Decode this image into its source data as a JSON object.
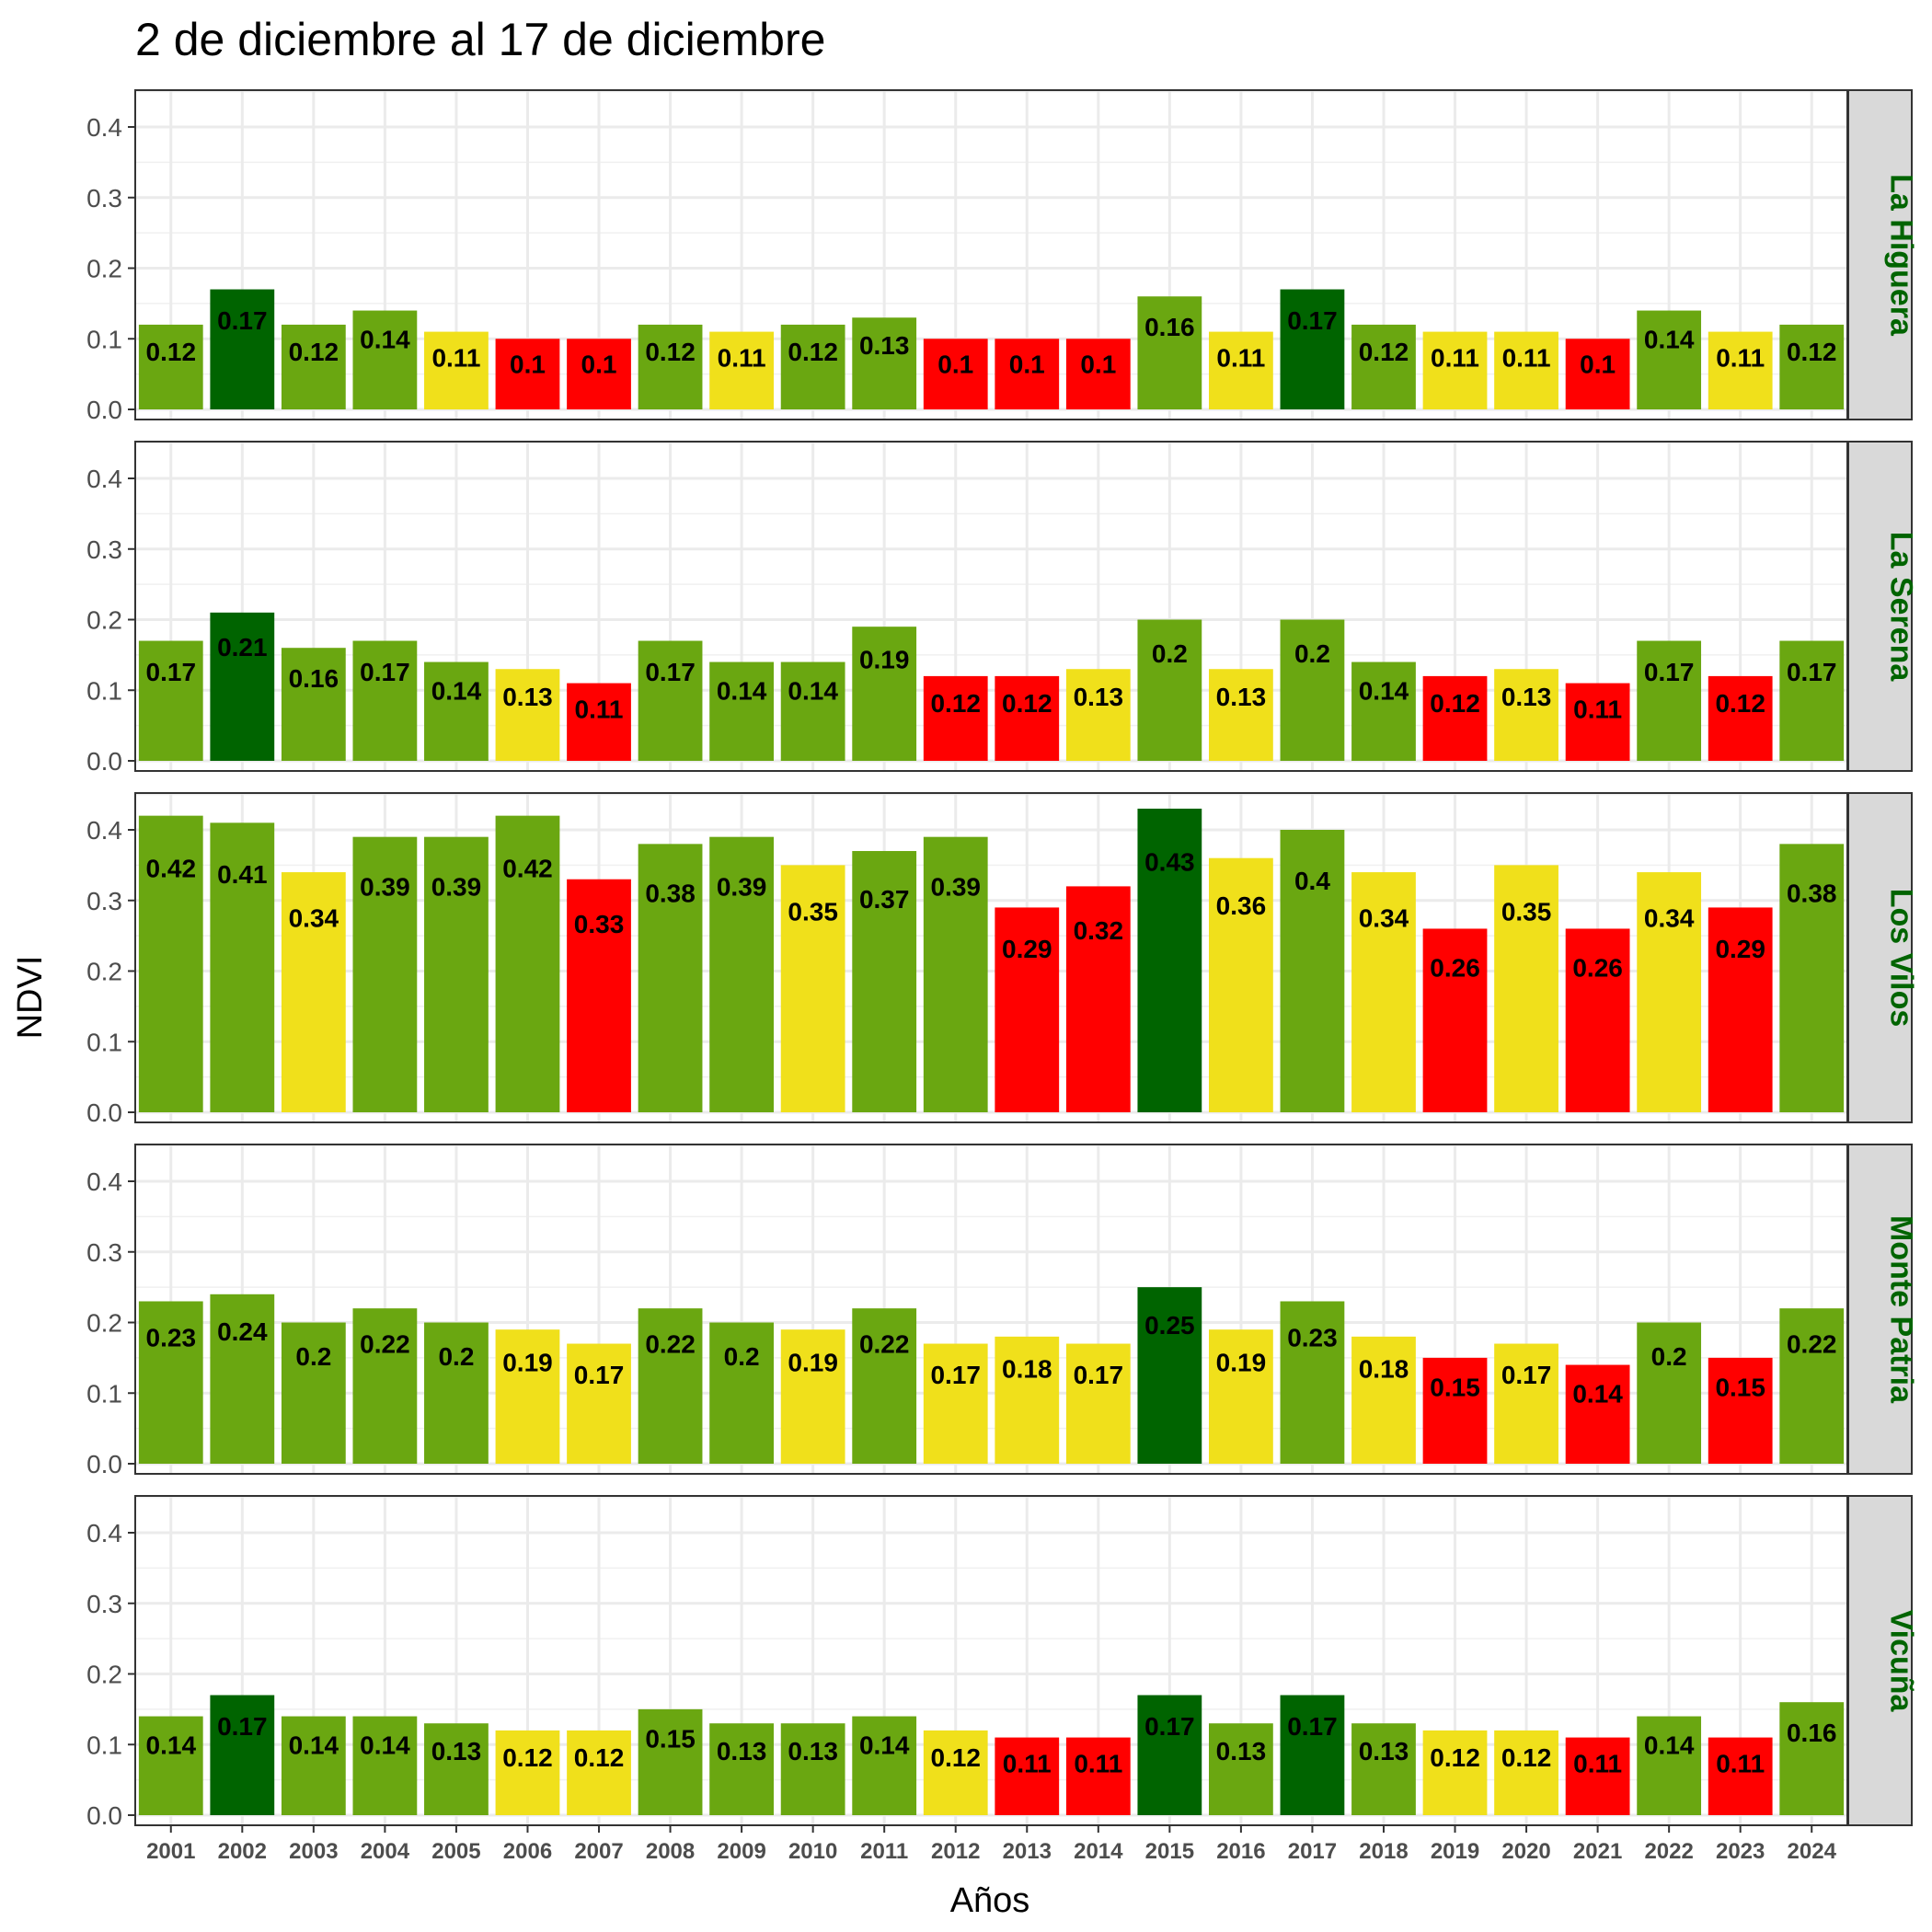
{
  "chart_data": {
    "type": "bar",
    "title": "2 de diciembre al 17 de diciembre",
    "xlabel": "Años",
    "ylabel": "NDVI",
    "ylim": [
      0,
      0.45
    ],
    "yticks": [
      "0.0",
      "0.1",
      "0.2",
      "0.3",
      "0.4"
    ],
    "grid": true,
    "strip_text_color": "#006400",
    "categories": [
      "2001",
      "2002",
      "2003",
      "2004",
      "2005",
      "2006",
      "2007",
      "2008",
      "2009",
      "2010",
      "2011",
      "2012",
      "2013",
      "2014",
      "2015",
      "2016",
      "2017",
      "2018",
      "2019",
      "2020",
      "2021",
      "2022",
      "2023",
      "2024"
    ],
    "colors": {
      "dark_green": "#006400",
      "green": "#6aa711",
      "yellow": "#f0e01b",
      "red": "#ff0000"
    },
    "facets": [
      {
        "name": "La Higuera",
        "values": [
          0.12,
          0.17,
          0.12,
          0.14,
          0.11,
          0.1,
          0.1,
          0.12,
          0.11,
          0.12,
          0.13,
          0.1,
          0.1,
          0.1,
          0.16,
          0.11,
          0.17,
          0.12,
          0.11,
          0.11,
          0.1,
          0.14,
          0.11,
          0.12
        ],
        "labels": [
          "0.12",
          "0.17",
          "0.12",
          "0.14",
          "0.11",
          "0.1",
          "0.1",
          "0.12",
          "0.11",
          "0.12",
          "0.13",
          "0.1",
          "0.1",
          "0.1",
          "0.16",
          "0.11",
          "0.17",
          "0.12",
          "0.11",
          "0.11",
          "0.1",
          "0.14",
          "0.11",
          "0.12"
        ],
        "classes": [
          "green",
          "dark_green",
          "green",
          "green",
          "yellow",
          "red",
          "red",
          "green",
          "yellow",
          "green",
          "green",
          "red",
          "red",
          "red",
          "green",
          "yellow",
          "dark_green",
          "green",
          "yellow",
          "yellow",
          "red",
          "green",
          "yellow",
          "green"
        ]
      },
      {
        "name": "La Serena",
        "values": [
          0.17,
          0.21,
          0.16,
          0.17,
          0.14,
          0.13,
          0.11,
          0.17,
          0.14,
          0.14,
          0.19,
          0.12,
          0.12,
          0.13,
          0.2,
          0.13,
          0.2,
          0.14,
          0.12,
          0.13,
          0.11,
          0.17,
          0.12,
          0.17
        ],
        "labels": [
          "0.17",
          "0.21",
          "0.16",
          "0.17",
          "0.14",
          "0.13",
          "0.11",
          "0.17",
          "0.14",
          "0.14",
          "0.19",
          "0.12",
          "0.12",
          "0.13",
          "0.2",
          "0.13",
          "0.2",
          "0.14",
          "0.12",
          "0.13",
          "0.11",
          "0.17",
          "0.12",
          "0.17"
        ],
        "classes": [
          "green",
          "dark_green",
          "green",
          "green",
          "green",
          "yellow",
          "red",
          "green",
          "green",
          "green",
          "green",
          "red",
          "red",
          "yellow",
          "green",
          "yellow",
          "green",
          "green",
          "red",
          "yellow",
          "red",
          "green",
          "red",
          "green"
        ]
      },
      {
        "name": "Los Vilos",
        "values": [
          0.42,
          0.41,
          0.34,
          0.39,
          0.39,
          0.42,
          0.33,
          0.38,
          0.39,
          0.35,
          0.37,
          0.39,
          0.29,
          0.32,
          0.43,
          0.36,
          0.4,
          0.34,
          0.26,
          0.35,
          0.26,
          0.34,
          0.29,
          0.38
        ],
        "labels": [
          "0.42",
          "0.41",
          "0.34",
          "0.39",
          "0.39",
          "0.42",
          "0.33",
          "0.38",
          "0.39",
          "0.35",
          "0.37",
          "0.39",
          "0.29",
          "0.32",
          "0.43",
          "0.36",
          "0.4",
          "0.34",
          "0.26",
          "0.35",
          "0.26",
          "0.34",
          "0.29",
          "0.38"
        ],
        "classes": [
          "green",
          "green",
          "yellow",
          "green",
          "green",
          "green",
          "red",
          "green",
          "green",
          "yellow",
          "green",
          "green",
          "red",
          "red",
          "dark_green",
          "yellow",
          "green",
          "yellow",
          "red",
          "yellow",
          "red",
          "yellow",
          "red",
          "green"
        ]
      },
      {
        "name": "Monte Patria",
        "values": [
          0.23,
          0.24,
          0.2,
          0.22,
          0.2,
          0.19,
          0.17,
          0.22,
          0.2,
          0.19,
          0.22,
          0.17,
          0.18,
          0.17,
          0.25,
          0.19,
          0.23,
          0.18,
          0.15,
          0.17,
          0.14,
          0.2,
          0.15,
          0.22
        ],
        "labels": [
          "0.23",
          "0.24",
          "0.2",
          "0.22",
          "0.2",
          "0.19",
          "0.17",
          "0.22",
          "0.2",
          "0.19",
          "0.22",
          "0.17",
          "0.18",
          "0.17",
          "0.25",
          "0.19",
          "0.23",
          "0.18",
          "0.15",
          "0.17",
          "0.14",
          "0.2",
          "0.15",
          "0.22"
        ],
        "classes": [
          "green",
          "green",
          "green",
          "green",
          "green",
          "yellow",
          "yellow",
          "green",
          "green",
          "yellow",
          "green",
          "yellow",
          "yellow",
          "yellow",
          "dark_green",
          "yellow",
          "green",
          "yellow",
          "red",
          "yellow",
          "red",
          "green",
          "red",
          "green"
        ]
      },
      {
        "name": "Vicuña",
        "values": [
          0.14,
          0.17,
          0.14,
          0.14,
          0.13,
          0.12,
          0.12,
          0.15,
          0.13,
          0.13,
          0.14,
          0.12,
          0.11,
          0.11,
          0.17,
          0.13,
          0.17,
          0.13,
          0.12,
          0.12,
          0.11,
          0.14,
          0.11,
          0.16
        ],
        "labels": [
          "0.14",
          "0.17",
          "0.14",
          "0.14",
          "0.13",
          "0.12",
          "0.12",
          "0.15",
          "0.13",
          "0.13",
          "0.14",
          "0.12",
          "0.11",
          "0.11",
          "0.17",
          "0.13",
          "0.17",
          "0.13",
          "0.12",
          "0.12",
          "0.11",
          "0.14",
          "0.11",
          "0.16"
        ],
        "classes": [
          "green",
          "dark_green",
          "green",
          "green",
          "green",
          "yellow",
          "yellow",
          "green",
          "green",
          "green",
          "green",
          "yellow",
          "red",
          "red",
          "dark_green",
          "green",
          "dark_green",
          "green",
          "yellow",
          "yellow",
          "red",
          "green",
          "red",
          "green"
        ]
      }
    ]
  }
}
